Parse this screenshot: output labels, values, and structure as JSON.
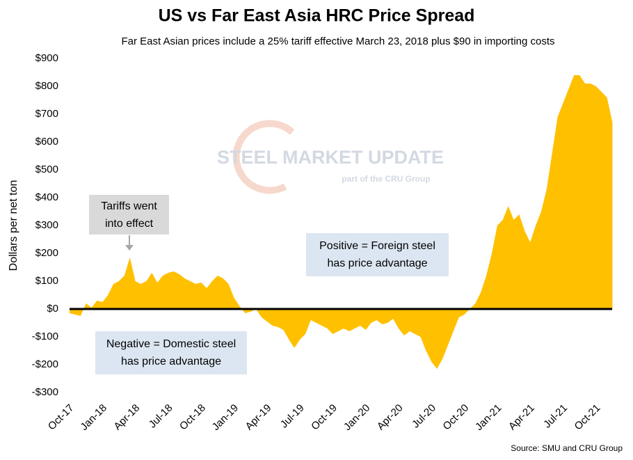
{
  "chart_data": {
    "type": "area",
    "title": "US vs Far East Asia HRC Price Spread",
    "subtitle": "Far East Asian prices include a 25% tariff effective March 23, 2018 plus $90 in importing costs",
    "y_label": "Dollars per net ton",
    "source": "Source: SMU and CRU Group",
    "watermark": [
      "STEEL MARKET UPDATE",
      "part of the CRU Group"
    ],
    "annotations": [
      "Tariffs went into effect",
      "Positive = Foreign steel has price advantage",
      "Negative = Domestic steel has price advantage"
    ],
    "color": "#ffc000",
    "categories": [
      "Oct-17",
      null,
      null,
      null,
      null,
      null,
      "Jan-18",
      null,
      null,
      null,
      null,
      null,
      "Apr-18",
      null,
      null,
      null,
      null,
      null,
      "Jul-18",
      null,
      null,
      null,
      null,
      null,
      "Oct-18",
      null,
      null,
      null,
      null,
      null,
      "Jan-19",
      null,
      null,
      null,
      null,
      null,
      "Apr-19",
      null,
      null,
      null,
      null,
      null,
      "Jul-19",
      null,
      null,
      null,
      null,
      null,
      "Oct-19",
      null,
      null,
      null,
      null,
      null,
      "Jan-20",
      null,
      null,
      null,
      null,
      null,
      "Apr-20",
      null,
      null,
      null,
      null,
      null,
      "Jul-20",
      null,
      null,
      null,
      null,
      null,
      "Oct-20",
      null,
      null,
      null,
      null,
      null,
      "Jan-21",
      null,
      null,
      null,
      null,
      null,
      "Apr-21",
      null,
      null,
      null,
      null,
      null,
      "Jul-21",
      null,
      null,
      null,
      null,
      null,
      "Oct-21",
      null,
      null,
      null
    ],
    "values": [
      -15,
      -20,
      -25,
      20,
      5,
      30,
      25,
      50,
      90,
      100,
      120,
      185,
      100,
      90,
      100,
      130,
      95,
      120,
      130,
      135,
      125,
      110,
      100,
      90,
      95,
      75,
      100,
      120,
      110,
      90,
      40,
      10,
      -15,
      -10,
      0,
      -30,
      -45,
      -60,
      -65,
      -75,
      -110,
      -140,
      -110,
      -90,
      -40,
      -50,
      -60,
      -70,
      -90,
      -80,
      -70,
      -80,
      -70,
      -60,
      -75,
      -50,
      -40,
      -55,
      -50,
      -35,
      -70,
      -95,
      -80,
      -90,
      -100,
      -150,
      -190,
      -215,
      -180,
      -130,
      -80,
      -30,
      -20,
      0,
      20,
      60,
      120,
      200,
      300,
      320,
      370,
      320,
      340,
      280,
      240,
      300,
      350,
      430,
      560,
      690,
      740,
      790,
      840,
      840,
      810,
      810,
      800,
      780,
      760,
      670
    ],
    "ylim": [
      -300,
      900
    ],
    "yticks": [
      {
        "value": -300,
        "label": "-$300"
      },
      {
        "value": -200,
        "label": "-$200"
      },
      {
        "value": -100,
        "label": "-$100"
      },
      {
        "value": 0,
        "label": "$0"
      },
      {
        "value": 100,
        "label": "$100"
      },
      {
        "value": 200,
        "label": "$200"
      },
      {
        "value": 300,
        "label": "$300"
      },
      {
        "value": 400,
        "label": "$400"
      },
      {
        "value": 500,
        "label": "$500"
      },
      {
        "value": 600,
        "label": "$600"
      },
      {
        "value": 700,
        "label": "$700"
      },
      {
        "value": 800,
        "label": "$800"
      },
      {
        "value": 900,
        "label": "$900"
      }
    ],
    "grid": false
  }
}
